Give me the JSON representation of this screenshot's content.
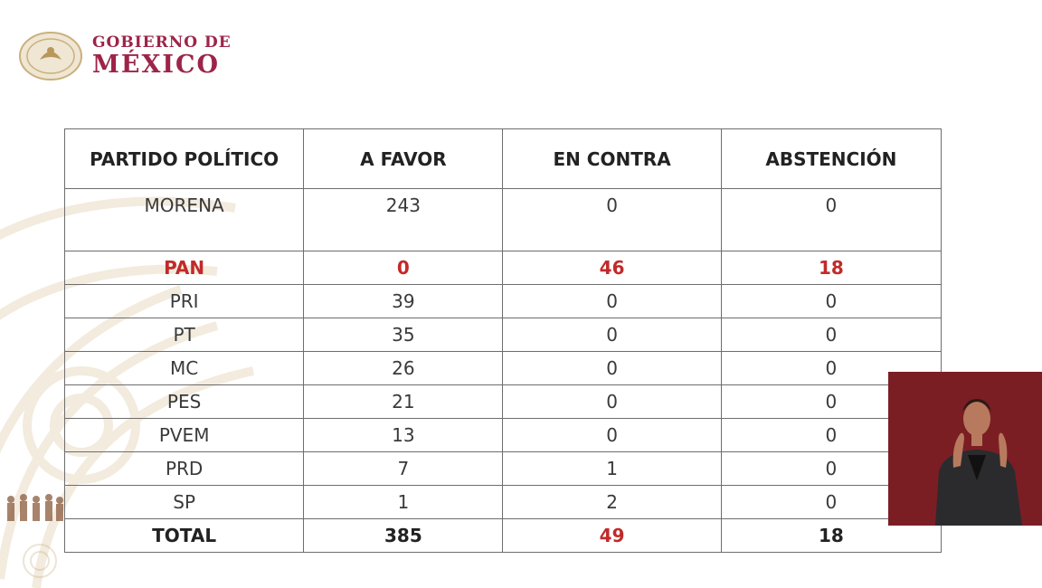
{
  "header": {
    "line1": "GOBIERNO DE",
    "line2": "MÉXICO"
  },
  "table": {
    "headers": [
      "PARTIDO POLÍTICO",
      "A FAVOR",
      "EN CONTRA",
      "ABSTENCIÓN"
    ],
    "rows": [
      [
        "MORENA",
        "243",
        "0",
        "0"
      ],
      [
        "PAN",
        "0",
        "46",
        "18"
      ],
      [
        "PRI",
        "39",
        "0",
        "0"
      ],
      [
        "PT",
        "35",
        "0",
        "0"
      ],
      [
        "MC",
        "26",
        "0",
        "0"
      ],
      [
        "PES",
        "21",
        "0",
        "0"
      ],
      [
        "PVEM",
        "13",
        "0",
        "0"
      ],
      [
        "PRD",
        "7",
        "1",
        "0"
      ],
      [
        "SP",
        "1",
        "2",
        "0"
      ]
    ],
    "total": [
      "TOTAL",
      "385",
      "49",
      "18"
    ]
  },
  "colors": {
    "brand": "#9d2449",
    "highlight": "#c22a2a",
    "interpreter_bg": "#7a1e24"
  }
}
